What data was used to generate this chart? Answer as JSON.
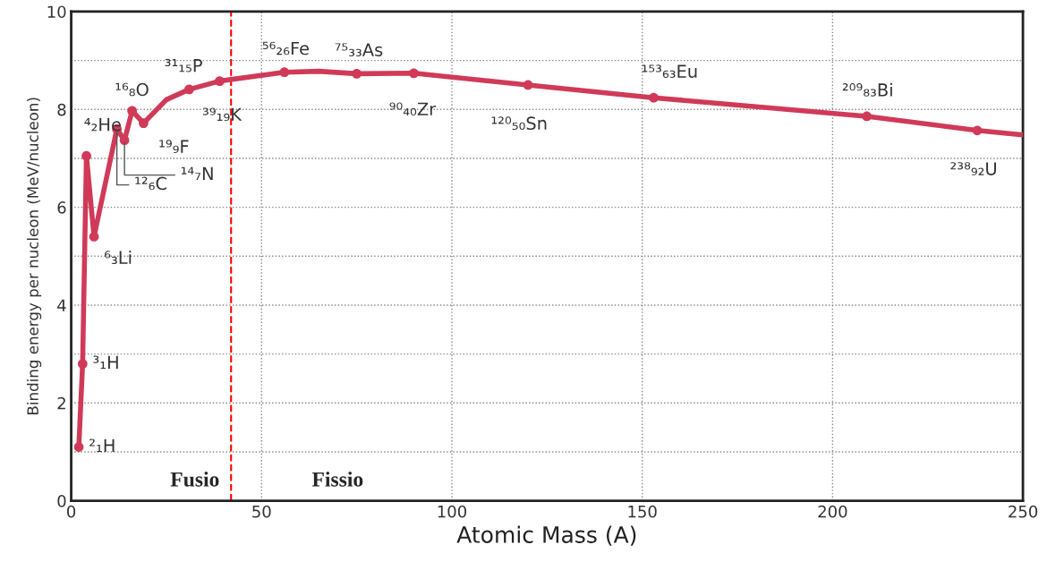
{
  "chart_data": {
    "type": "line",
    "xlabel": "Atomic Mass (A)",
    "ylabel": "Binding energy per nucleon (MeV/nucleon)",
    "xlim": [
      0,
      250
    ],
    "xticks": [
      0,
      50,
      100,
      150,
      200,
      250
    ],
    "ylim": [
      0,
      10
    ],
    "yticks": [
      0,
      {
        "value": 1,
        "label": null
      },
      2,
      {
        "value": 3,
        "label": null
      },
      4,
      {
        "value": 5,
        "label": null
      },
      6,
      {
        "value": 7,
        "label": null
      },
      8,
      {
        "value": 9,
        "label": null
      },
      10
    ],
    "grid": true,
    "series": [
      {
        "color": "#d03a58",
        "marker": "none",
        "x": [
          2,
          3,
          4,
          6,
          12,
          14,
          16,
          19,
          25,
          31,
          39,
          56,
          65,
          75,
          90,
          120,
          153,
          209,
          238,
          250
        ],
        "values": [
          1.1,
          2.8,
          7.05,
          5.4,
          7.6,
          7.37,
          7.97,
          7.72,
          8.2,
          8.41,
          8.58,
          8.76,
          8.78,
          8.73,
          8.74,
          8.5,
          8.24,
          7.86,
          7.57,
          7.48
        ]
      },
      {
        "type": "scatter",
        "color": "#d03a58",
        "marker": "circle",
        "x": [
          2,
          3,
          4,
          6,
          12,
          14,
          16,
          19,
          31,
          39,
          56,
          75,
          90,
          120,
          153,
          209,
          238
        ],
        "values": [
          1.1,
          2.8,
          7.05,
          5.4,
          7.6,
          7.37,
          7.97,
          7.72,
          8.41,
          8.58,
          8.76,
          8.73,
          8.74,
          8.5,
          8.24,
          7.86,
          7.57
        ]
      }
    ],
    "ref_lines": [
      {
        "axis": "x",
        "value": 42,
        "color": "#ff0000",
        "line_style": "dashed"
      }
    ],
    "annotations": [
      {
        "text": "²₁H",
        "x": 2,
        "y": 1.1
      },
      {
        "text": "³₁H",
        "x": 3,
        "y": 2.8
      },
      {
        "text": "⁴₂He",
        "x": 4,
        "y": 7.05
      },
      {
        "text": "⁶₃Li",
        "x": 6,
        "y": 5.4
      },
      {
        "text": "¹²₆C",
        "x": 12,
        "y": 7.6
      },
      {
        "text": "¹⁴₇N",
        "x": 14,
        "y": 7.37
      },
      {
        "text": "¹⁶₈O",
        "x": 16,
        "y": 7.97
      },
      {
        "text": "¹⁹₉F",
        "x": 19,
        "y": 7.72
      },
      {
        "text": "³¹₁₅P",
        "x": 31,
        "y": 8.41
      },
      {
        "text": "³⁹₁₉K",
        "x": 39,
        "y": 8.58
      },
      {
        "text": "⁵⁶₂₆Fe",
        "x": 56,
        "y": 8.76
      },
      {
        "text": "⁷⁵₃₃As",
        "x": 75,
        "y": 8.73
      },
      {
        "text": "⁹⁰₄₀Zr",
        "x": 90,
        "y": 8.74
      },
      {
        "text": "¹²⁰₅₀Sn",
        "x": 120,
        "y": 8.5
      },
      {
        "text": "¹⁵³₆₃Eu",
        "x": 153,
        "y": 8.24
      },
      {
        "text": "²⁰⁹₈₃Bi",
        "x": 209,
        "y": 7.86
      },
      {
        "text": "²³⁸₉₂U",
        "x": 238,
        "y": 7.57
      },
      "Fusio",
      "Fissio"
    ]
  }
}
